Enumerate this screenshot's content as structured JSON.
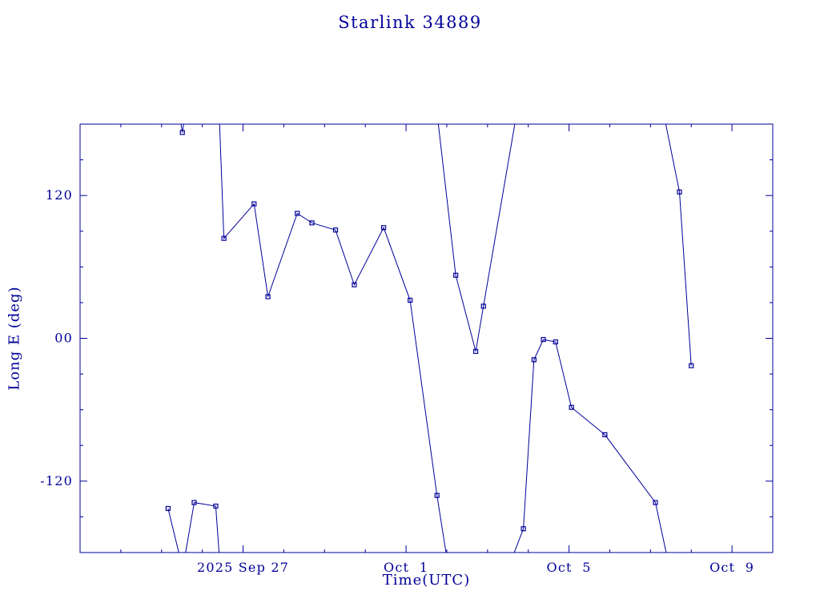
{
  "chart_data": {
    "type": "line",
    "title": "Starlink 34889",
    "xlabel": "Time(UTC)",
    "ylabel": "Long E (deg)",
    "color": "#000099",
    "background": "#ffffff",
    "x_domain_days": [
      0,
      17
    ],
    "x_domain_note": "days since 2025 Sep 23 (UTC)",
    "ylim": [
      -180,
      180
    ],
    "grid": false,
    "legend": "none",
    "x_ticks": [
      {
        "label": "2025 Sep 27",
        "value": 4
      },
      {
        "label": "Oct  1",
        "value": 8
      },
      {
        "label": "Oct  5",
        "value": 12
      },
      {
        "label": "Oct  9",
        "value": 16
      }
    ],
    "x_minor_step": 1,
    "y_ticks": [
      {
        "label": "120",
        "value": 120
      },
      {
        "label": "00",
        "value": 0
      },
      {
        "label": "-120",
        "value": -120
      }
    ],
    "y_minor_step": 30,
    "marker": "open-square",
    "series_note": "East longitude vs time; curve wraps at +/-180 deg. m=true means a square marker is drawn at that vertex.",
    "segments": [
      [
        {
          "t": 2.16,
          "lon": -143,
          "m": true
        },
        {
          "t": 2.45,
          "lon": -184,
          "m": false
        }
      ],
      [
        {
          "t": 2.46,
          "lon": 184,
          "m": false
        },
        {
          "t": 2.51,
          "lon": 173,
          "m": true
        },
        {
          "t": 2.56,
          "lon": 184,
          "m": false
        }
      ],
      [
        {
          "t": 2.57,
          "lon": -184,
          "m": false
        },
        {
          "t": 2.8,
          "lon": -138,
          "m": true
        },
        {
          "t": 3.33,
          "lon": -141,
          "m": true
        },
        {
          "t": 3.42,
          "lon": -184,
          "m": false
        }
      ],
      [
        {
          "t": 3.42,
          "lon": 184,
          "m": false
        },
        {
          "t": 3.53,
          "lon": 84,
          "m": true
        },
        {
          "t": 4.27,
          "lon": 113,
          "m": true
        },
        {
          "t": 4.61,
          "lon": 35,
          "m": true
        },
        {
          "t": 5.33,
          "lon": 105,
          "m": true
        },
        {
          "t": 5.69,
          "lon": 97,
          "m": true
        },
        {
          "t": 6.27,
          "lon": 91,
          "m": true
        },
        {
          "t": 6.73,
          "lon": 45,
          "m": true
        },
        {
          "t": 7.45,
          "lon": 93,
          "m": true
        },
        {
          "t": 8.1,
          "lon": 32,
          "m": true
        },
        {
          "t": 8.76,
          "lon": -132,
          "m": true
        },
        {
          "t": 9.0,
          "lon": -184,
          "m": false
        }
      ],
      [
        {
          "t": 8.78,
          "lon": 184,
          "m": false
        },
        {
          "t": 9.22,
          "lon": 53,
          "m": true
        },
        {
          "t": 9.71,
          "lon": -11,
          "m": true
        },
        {
          "t": 9.9,
          "lon": 27,
          "m": true
        },
        {
          "t": 10.69,
          "lon": 184,
          "m": false
        }
      ],
      [
        {
          "t": 10.61,
          "lon": -184,
          "m": false
        },
        {
          "t": 10.88,
          "lon": -160,
          "m": true
        },
        {
          "t": 11.14,
          "lon": -18,
          "m": true
        },
        {
          "t": 11.37,
          "lon": -1,
          "m": true
        },
        {
          "t": 11.67,
          "lon": -3,
          "m": true
        },
        {
          "t": 12.06,
          "lon": -58,
          "m": true
        },
        {
          "t": 12.88,
          "lon": -81,
          "m": true
        },
        {
          "t": 14.12,
          "lon": -138,
          "m": true
        },
        {
          "t": 14.41,
          "lon": -184,
          "m": false
        }
      ],
      [
        {
          "t": 14.35,
          "lon": 184,
          "m": false
        },
        {
          "t": 14.71,
          "lon": 123,
          "m": true
        },
        {
          "t": 15.0,
          "lon": -23,
          "m": true
        }
      ]
    ]
  }
}
